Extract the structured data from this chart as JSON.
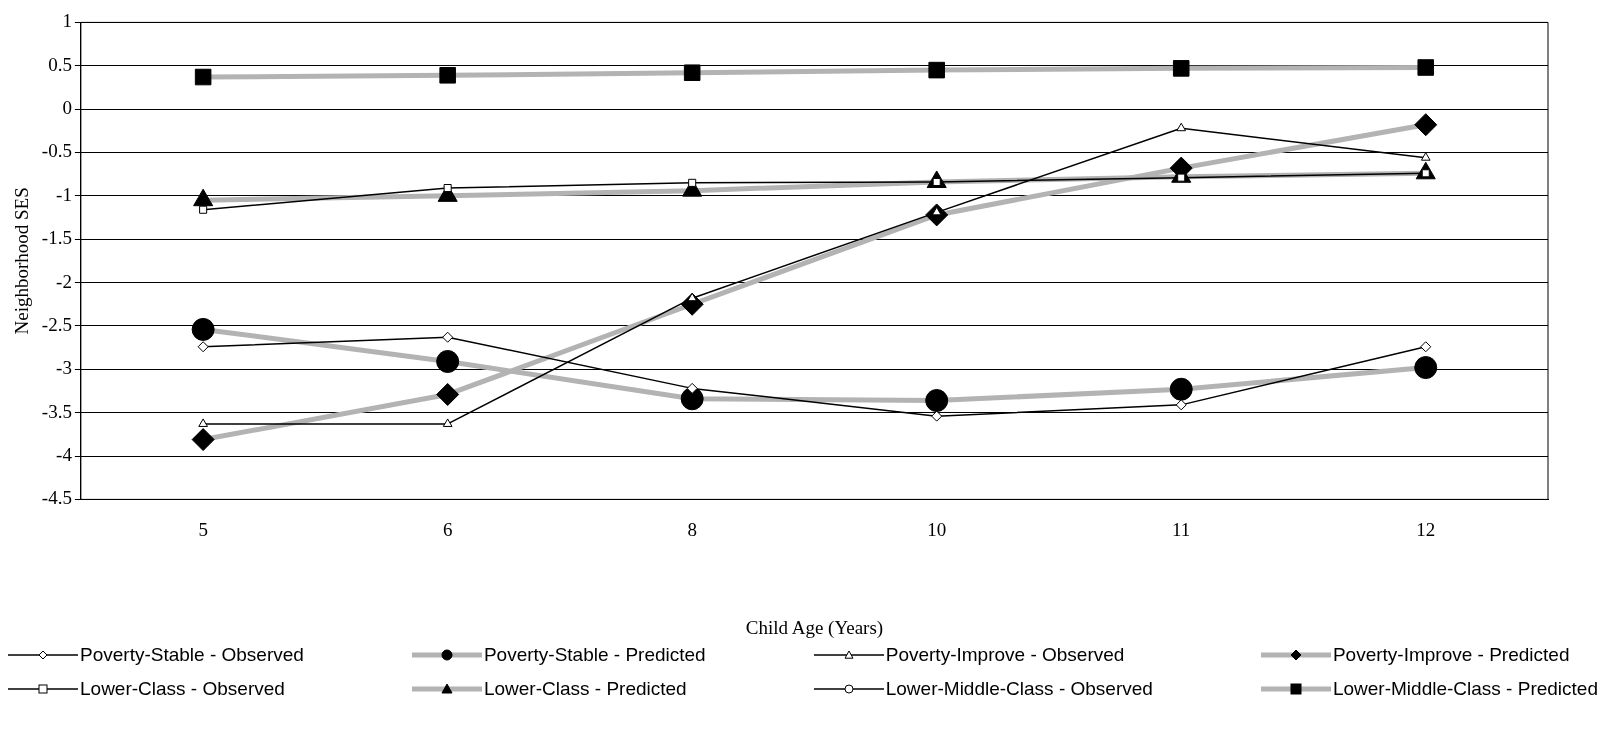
{
  "chart_data": {
    "type": "line",
    "xlabel": "Child Age (Years)",
    "ylabel": "Neighborhood SES",
    "categories": [
      "5",
      "6",
      "8",
      "10",
      "11",
      "12"
    ],
    "ylim": [
      -4.5,
      1
    ],
    "yticks": [
      -4.5,
      -4,
      -3.5,
      -3,
      -2.5,
      -2,
      -1.5,
      -1,
      -0.5,
      0,
      0.5,
      1
    ],
    "grid": "y",
    "legend": "bottom",
    "series": [
      {
        "name": "Poverty-Stable - Observed",
        "color": "#000000",
        "marker": "diamond",
        "values": [
          -2.74,
          -2.63,
          -3.22,
          -3.54,
          -3.41,
          -2.74
        ]
      },
      {
        "name": "Poverty-Stable - Predicted",
        "color": "#b3b3b3",
        "marker": "circle",
        "values": [
          -2.54,
          -2.91,
          -3.34,
          -3.36,
          -3.23,
          -2.98
        ]
      },
      {
        "name": "Poverty-Improve - Observed",
        "color": "#000000",
        "marker": "triangle",
        "values": [
          -3.63,
          -3.63,
          -2.18,
          -1.19,
          -0.22,
          -0.56
        ]
      },
      {
        "name": "Poverty-Improve - Predicted",
        "color": "#b3b3b3",
        "marker": "diamond",
        "values": [
          -3.81,
          -3.29,
          -2.25,
          -1.22,
          -0.68,
          -0.18
        ]
      },
      {
        "name": "Lower-Class - Observed",
        "color": "#000000",
        "marker": "square",
        "values": [
          -1.16,
          -0.91,
          -0.85,
          -0.84,
          -0.79,
          -0.74
        ]
      },
      {
        "name": "Lower-Class - Predicted",
        "color": "#b3b3b3",
        "marker": "triangle",
        "values": [
          -1.05,
          -1.0,
          -0.94,
          -0.84,
          -0.78,
          -0.74
        ]
      },
      {
        "name": "Lower-Middle-Class - Observed",
        "color": "#000000",
        "marker": "circle",
        "values": [
          null,
          null,
          null,
          null,
          null,
          null
        ]
      },
      {
        "name": "Lower-Middle-Class - Predicted",
        "color": "#b3b3b3",
        "marker": "square",
        "values": [
          0.37,
          0.39,
          0.42,
          0.45,
          0.47,
          0.48
        ]
      }
    ]
  }
}
